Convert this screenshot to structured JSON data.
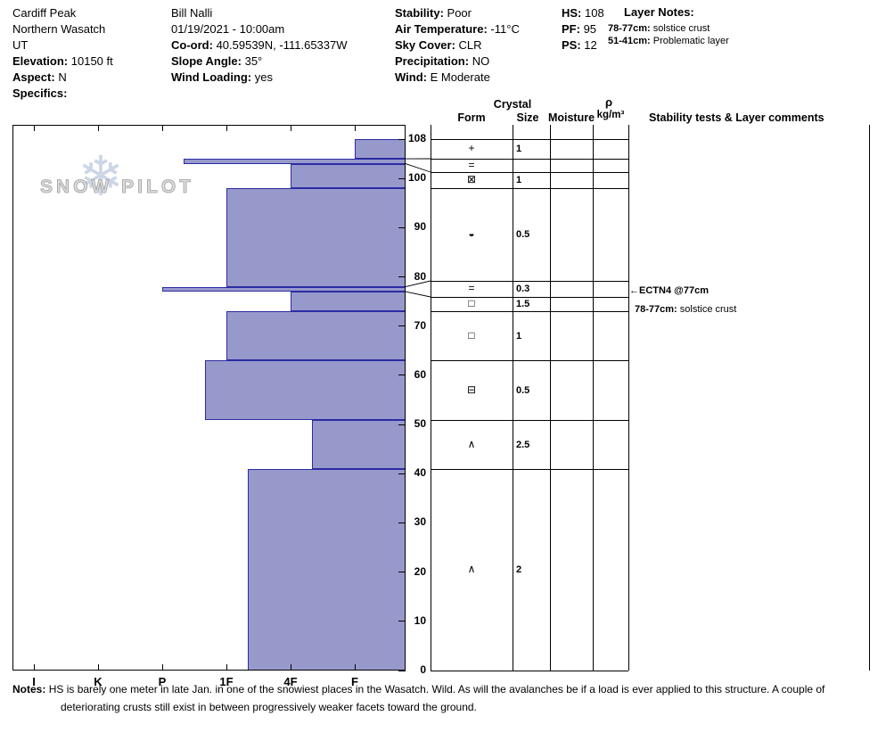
{
  "header": {
    "location": {
      "site": "Cardiff Peak",
      "region": "Northern Wasatch",
      "state": "UT",
      "elevation_label": "Elevation:",
      "elevation": "10150 ft",
      "aspect_label": "Aspect:",
      "aspect": "N",
      "specifics_label": "Specifics:"
    },
    "observer": {
      "name": "Bill Nalli",
      "datetime": "01/19/2021 - 10:00am",
      "coord_label": "Co-ord:",
      "coord": "40.59539N, -111.65337W",
      "slope_angle_label": "Slope Angle:",
      "slope_angle": "35°",
      "wind_loading_label": "Wind Loading:",
      "wind_loading": "yes"
    },
    "conditions": {
      "stability_label": "Stability:",
      "stability": "Poor",
      "air_temp_label": "Air Temperature:",
      "air_temp": "-11°C",
      "sky_cover_label": "Sky Cover:",
      "sky_cover": "CLR",
      "precipitation_label": "Precipitation:",
      "precipitation": "NO",
      "wind_label": "Wind:",
      "wind": "E Moderate"
    },
    "metrics": {
      "hs_label": "HS:",
      "hs": "108",
      "pf_label": "PF:",
      "pf": "95",
      "ps_label": "PS:",
      "ps": "12"
    },
    "layer_notes": {
      "title": "Layer Notes:",
      "items": [
        {
          "range": "78-77cm:",
          "text": "solstice crust"
        },
        {
          "range": "51-41cm:",
          "text": "Problematic layer"
        }
      ]
    }
  },
  "chart_data": {
    "type": "bar",
    "orientation": "horizontal",
    "hardness_scale": [
      "I",
      "K",
      "P",
      "1F",
      "4F",
      "F"
    ],
    "depth_ticks": [
      0,
      10,
      20,
      30,
      40,
      50,
      60,
      70,
      80,
      90,
      100,
      108
    ],
    "ylim": [
      0,
      108
    ],
    "total_depth_cm": 108,
    "bar_fill_color": "#9899cb",
    "bar_border_color": "#2b2ba3",
    "layers": [
      {
        "top_cm": 108,
        "bottom_cm": 104,
        "hardness": "F",
        "form_symbol": "+",
        "form_name": "new-snow",
        "size_mm": "1"
      },
      {
        "top_cm": 104,
        "bottom_cm": 103,
        "hardness": "P-",
        "form_symbol": "=",
        "form_name": "crust",
        "size_mm": ""
      },
      {
        "top_cm": 103,
        "bottom_cm": 98,
        "hardness": "4F",
        "form_symbol": "⊠",
        "form_name": "mixed-forms",
        "size_mm": "1"
      },
      {
        "top_cm": 98,
        "bottom_cm": 78,
        "hardness": "1F",
        "form_symbol": "◒",
        "form_name": "rounds",
        "size_mm": "0.5"
      },
      {
        "top_cm": 78,
        "bottom_cm": 77,
        "hardness": "P",
        "form_symbol": "=",
        "form_name": "crust",
        "size_mm": "0.3"
      },
      {
        "top_cm": 77,
        "bottom_cm": 73,
        "hardness": "4F",
        "form_symbol": "□",
        "form_name": "facets",
        "size_mm": "1.5"
      },
      {
        "top_cm": 73,
        "bottom_cm": 63,
        "hardness": "1F",
        "form_symbol": "□",
        "form_name": "facets",
        "size_mm": "1"
      },
      {
        "top_cm": 63,
        "bottom_cm": 51,
        "hardness": "1F+",
        "form_symbol": "⊟",
        "form_name": "rounding-facets",
        "size_mm": "0.5"
      },
      {
        "top_cm": 51,
        "bottom_cm": 41,
        "hardness": "4F-",
        "form_symbol": "∧",
        "form_name": "depth-hoar",
        "size_mm": "2.5"
      },
      {
        "top_cm": 41,
        "bottom_cm": 0,
        "hardness": "1F-",
        "form_symbol": "∧",
        "form_name": "depth-hoar",
        "size_mm": "2"
      }
    ],
    "annotations": [
      {
        "depth_cm": 77,
        "text": "ECTN4 @77cm"
      },
      {
        "range": "78-77cm:",
        "text": "solstice crust"
      }
    ]
  },
  "crystal_table": {
    "header_crystal": "Crystal",
    "header_form": "Form",
    "header_size": "Size",
    "header_moisture": "Moisture",
    "header_rho": "ρ",
    "header_rho_units": "kg/m³"
  },
  "stability_panel": {
    "header": "Stability tests & Layer comments",
    "arrow_icon": "←",
    "test_result": "ECTN4 @77cm",
    "comment_range": "78-77cm:",
    "comment_text": "solstice crust"
  },
  "logo": {
    "snowflake_icon": "❄",
    "text": "SNOW PILOT"
  },
  "notes": {
    "label": "Notes:",
    "line1": "HS is barely one meter in late Jan. in one of the snowiest places in the Wasatch. Wild. As will the avalanches be if a load is ever applied to this structure. A couple of",
    "line2": "deteriorating crusts still exist in between progressively weaker facets toward the ground."
  }
}
